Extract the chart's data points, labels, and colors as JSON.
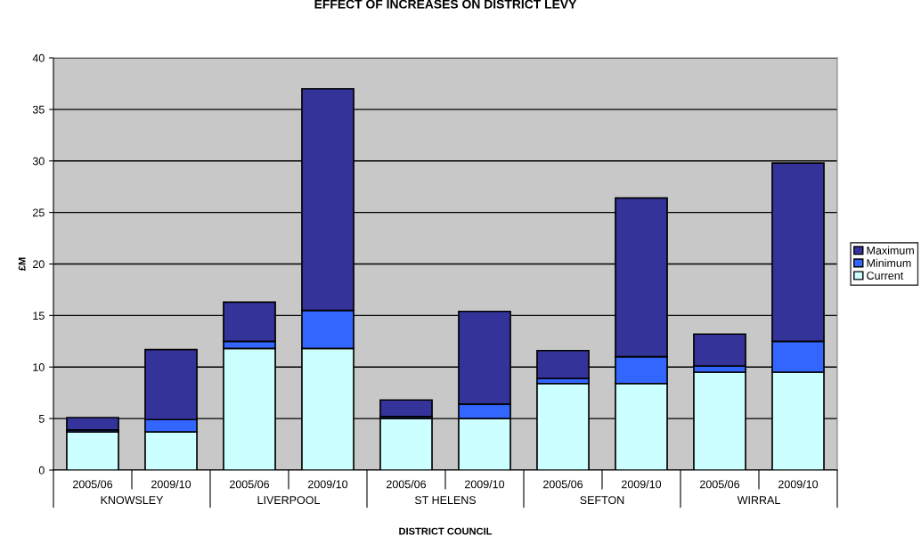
{
  "chart_data": {
    "type": "bar",
    "stacked": true,
    "title": "EFFECT OF INCREASES ON DISTRICT LEVY",
    "xlabel": "DISTRICT COUNCIL",
    "ylabel": "£M",
    "categories": [
      "2005/06",
      "2009/10",
      "2005/06",
      "2009/10",
      "2005/06",
      "2009/10",
      "2005/06",
      "2009/10",
      "2005/06",
      "2009/10"
    ],
    "series": [
      {
        "name": "Current",
        "color": "#ccffff",
        "values": [
          3.7,
          3.7,
          11.8,
          11.8,
          5.0,
          5.0,
          8.4,
          8.4,
          9.5,
          9.5
        ]
      },
      {
        "name": "Minimum",
        "color": "#3366ff",
        "values": [
          0.2,
          1.2,
          0.7,
          3.7,
          0.2,
          1.4,
          0.5,
          2.6,
          0.6,
          3.0
        ]
      },
      {
        "name": "Maximum",
        "color": "#333399",
        "values": [
          1.2,
          6.8,
          3.8,
          21.5,
          1.6,
          9.0,
          2.7,
          15.4,
          3.1,
          17.3
        ]
      }
    ],
    "annotations": [
      "KNOWSLEY",
      "LIVERPOOL",
      "ST HELENS",
      "SEFTON",
      "WIRRAL"
    ],
    "ylim": [
      0,
      40
    ],
    "yticks": [
      0,
      5,
      10,
      15,
      20,
      25,
      30,
      35,
      40
    ],
    "grid": "y",
    "legend": "right"
  }
}
